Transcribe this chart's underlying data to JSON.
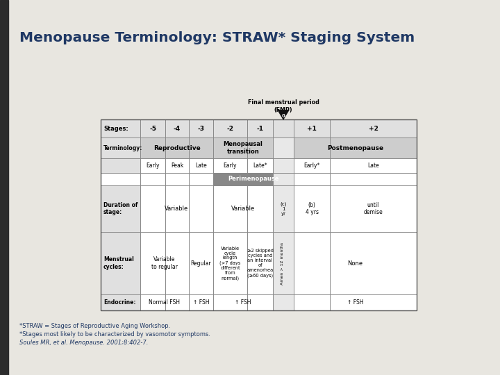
{
  "title": "Menopause Terminology: STRAW* Staging System",
  "title_color": "#1F3864",
  "slide_bg": "#E8E6E0",
  "table_bg": "#FFFFFF",
  "footnote1": "*STRAW = Stages of Reproductive Aging Workshop.",
  "footnote2": "*Stages most likely to be characterized by vasomotor symptoms.",
  "footnote3": "Soules MR, et al. Menopause. 2001;8:402-7.",
  "cell_light": "#E0E0E0",
  "cell_white": "#FFFFFF",
  "perimenopause_bg": "#888888",
  "left_bar_color": "#2C2C2C",
  "cols": [
    145,
    202,
    238,
    272,
    307,
    356,
    393,
    423,
    475,
    600
  ],
  "rows": [
    172,
    198,
    228,
    249,
    267,
    334,
    424,
    447
  ]
}
